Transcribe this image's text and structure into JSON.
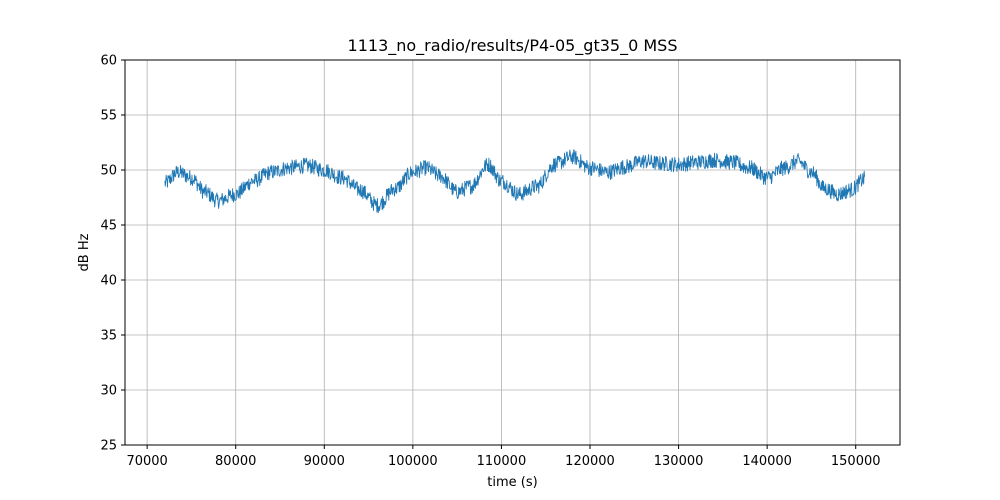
{
  "chart_data": {
    "type": "line",
    "title": "1113_no_radio/results/P4-05_gt35_0 MSS",
    "xlabel": "time (s)",
    "ylabel": "dB Hz",
    "xlim": [
      67500,
      155000
    ],
    "ylim": [
      25,
      60
    ],
    "xticks": [
      70000,
      80000,
      90000,
      100000,
      110000,
      120000,
      130000,
      140000,
      150000
    ],
    "yticks": [
      25,
      30,
      35,
      40,
      45,
      50,
      55,
      60
    ],
    "grid": true,
    "series": [
      {
        "color": "#1f77b4",
        "noise_amplitude": 0.7,
        "x": [
          72000,
          73500,
          75000,
          76500,
          78000,
          80000,
          82000,
          84000,
          86000,
          88000,
          90000,
          92000,
          94000,
          96000,
          98000,
          100000,
          101500,
          103000,
          105000,
          106500,
          108500,
          110000,
          112000,
          114000,
          116000,
          118000,
          120000,
          122000,
          124000,
          126000,
          128000,
          130000,
          132000,
          134000,
          136000,
          138000,
          140000,
          142000,
          143500,
          145000,
          146500,
          148000,
          149500,
          151000
        ],
        "y": [
          48.8,
          49.8,
          49.3,
          48.0,
          47.2,
          47.8,
          49.0,
          49.8,
          50.2,
          50.4,
          50.0,
          49.3,
          48.2,
          46.8,
          48.3,
          49.8,
          50.2,
          49.5,
          48.0,
          48.5,
          50.5,
          49.0,
          47.8,
          48.5,
          50.5,
          51.2,
          50.2,
          49.8,
          50.3,
          50.8,
          50.6,
          50.5,
          50.7,
          50.9,
          50.7,
          50.2,
          49.3,
          50.2,
          50.8,
          49.8,
          48.3,
          47.8,
          48.2,
          49.2
        ]
      }
    ]
  }
}
